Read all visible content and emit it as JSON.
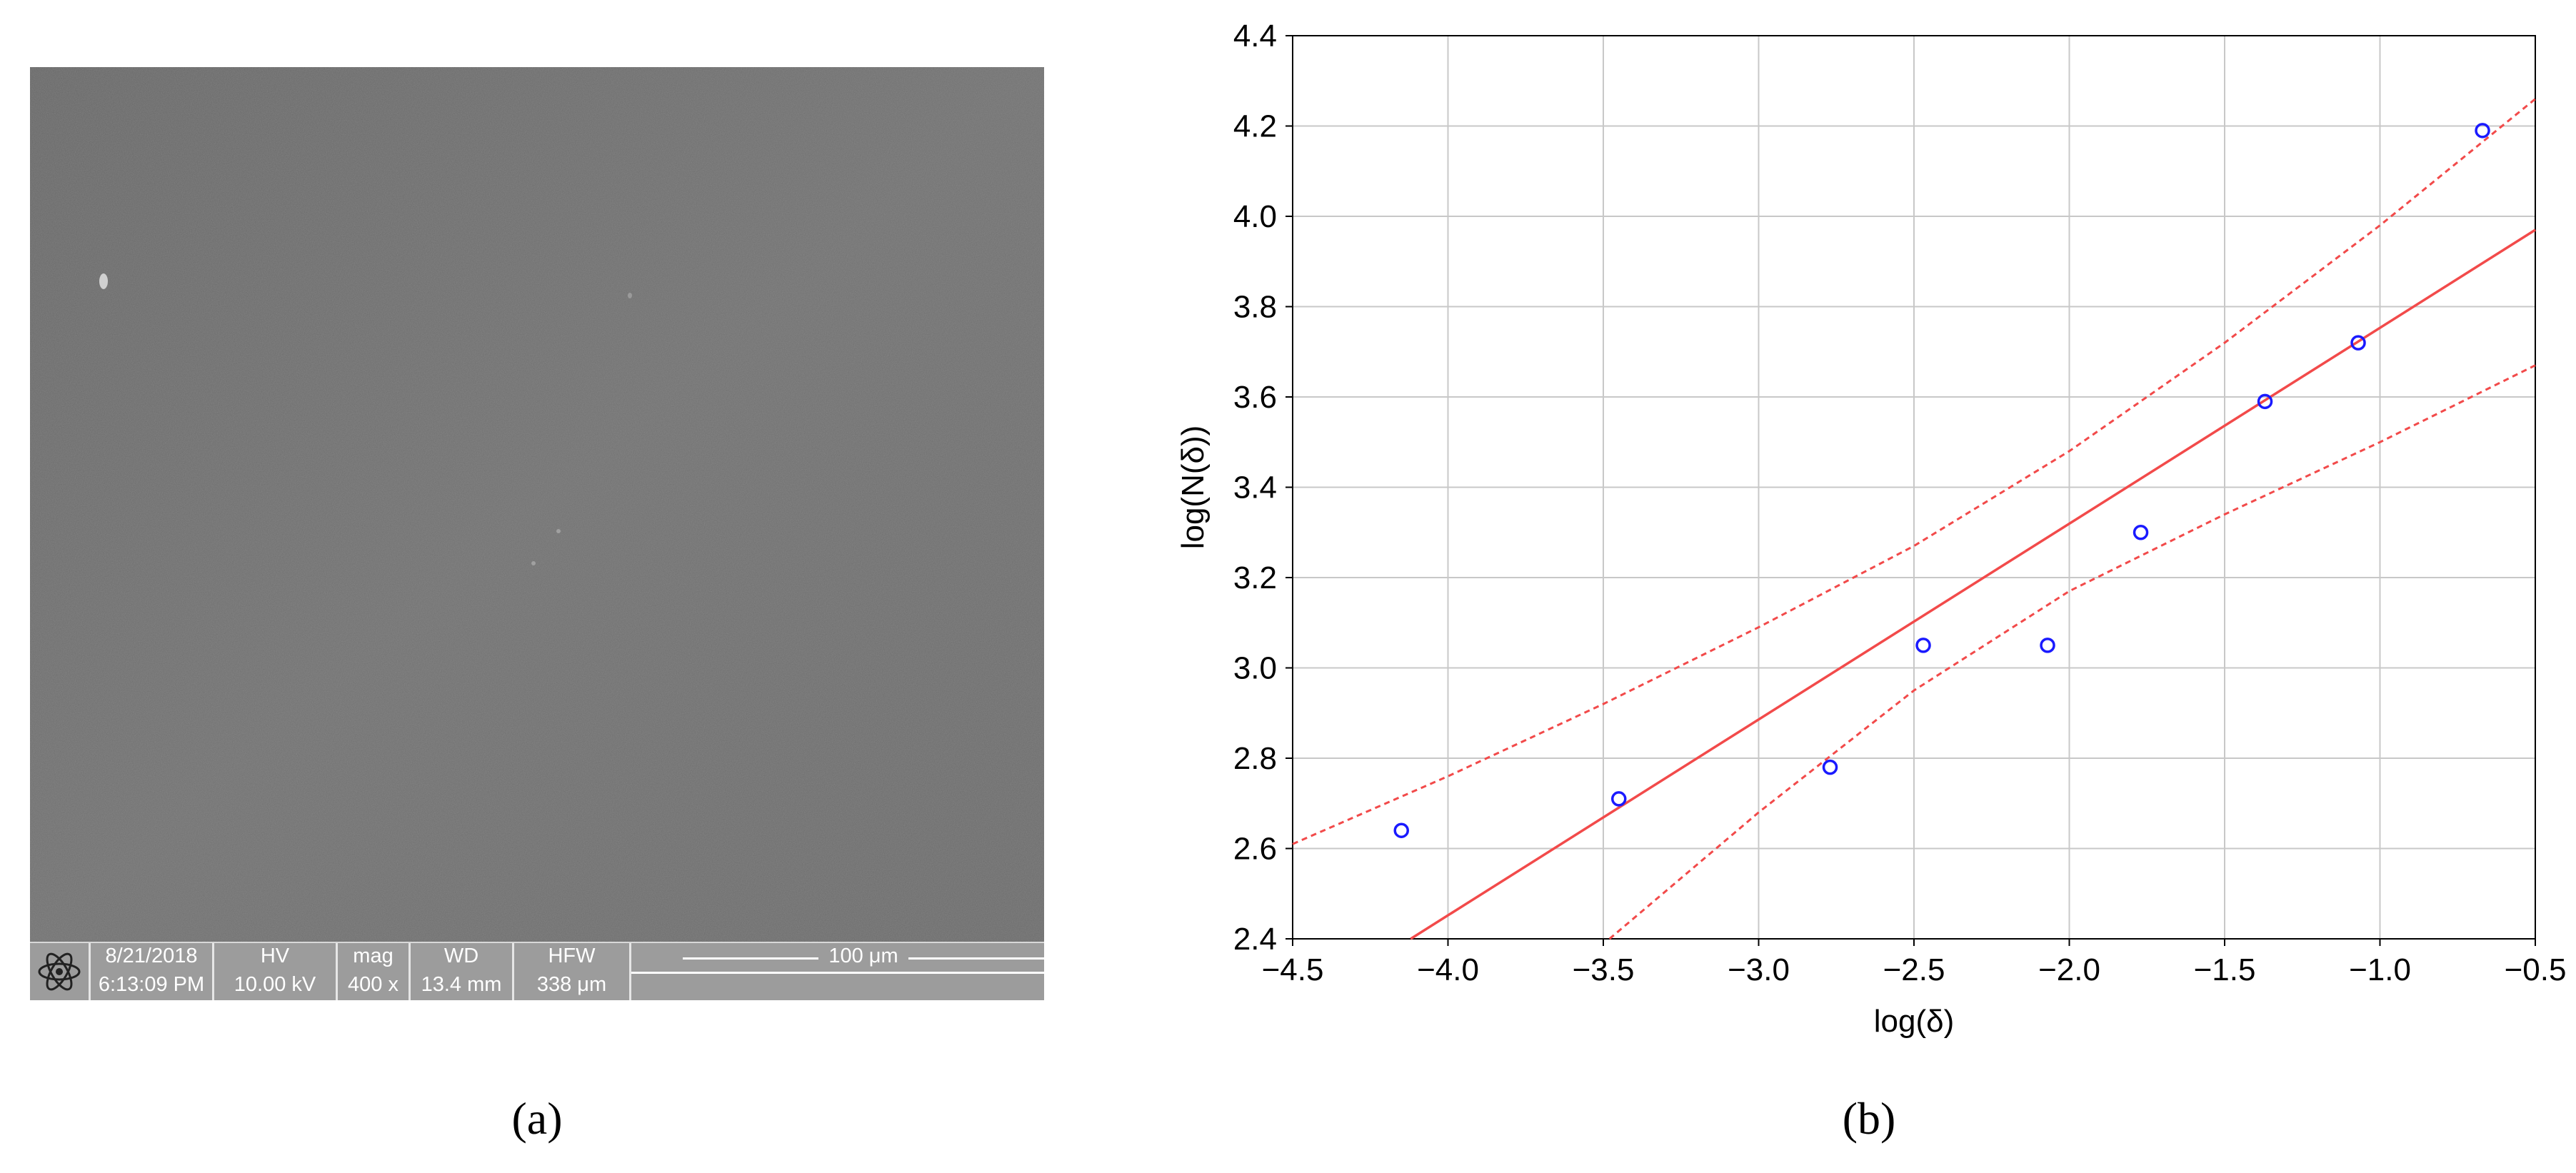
{
  "panel_a": {
    "caption": "(a)",
    "infobar": {
      "date": "8/21/2018",
      "time": "6:13:09 PM",
      "hv_label": "HV",
      "hv_value": "10.00 kV",
      "mag_label": "mag",
      "mag_value": "400 x",
      "wd_label": "WD",
      "wd_value": "13.4 mm",
      "hfw_label": "HFW",
      "hfw_value": "338 μm",
      "scale_label": "100 μm"
    },
    "logo_icon": "atom-icon",
    "colors": {
      "image_gray": "#6e6e6e",
      "infobar_gray": "#9c9c9c"
    }
  },
  "panel_b": {
    "caption": "(b)"
  },
  "chart_data": {
    "type": "scatter",
    "xlabel": "log(δ)",
    "ylabel": "log(N(δ))",
    "xlim": [
      -4.5,
      -0.5
    ],
    "ylim": [
      2.4,
      4.4
    ],
    "x_ticks": [
      "−4.5",
      "−4.0",
      "−3.5",
      "−3.0",
      "−2.5",
      "−2.0",
      "−1.5",
      "−1.0",
      "−0.5"
    ],
    "y_ticks": [
      "2.4",
      "2.6",
      "2.8",
      "3.0",
      "3.2",
      "3.4",
      "3.6",
      "3.8",
      "4.0",
      "4.2",
      "4.4"
    ],
    "grid": true,
    "points": [
      {
        "x": -4.15,
        "y": 2.64
      },
      {
        "x": -3.45,
        "y": 2.71
      },
      {
        "x": -2.77,
        "y": 2.78
      },
      {
        "x": -2.47,
        "y": 3.05
      },
      {
        "x": -2.07,
        "y": 3.05
      },
      {
        "x": -1.77,
        "y": 3.3
      },
      {
        "x": -1.37,
        "y": 3.59
      },
      {
        "x": -1.07,
        "y": 3.72
      },
      {
        "x": -0.67,
        "y": 4.19
      }
    ],
    "fit_line": [
      {
        "x": -4.12,
        "y": 2.4
      },
      {
        "x": -0.5,
        "y": 3.97
      }
    ],
    "confidence_upper": [
      {
        "x": -4.5,
        "y": 2.61
      },
      {
        "x": -4.0,
        "y": 2.76
      },
      {
        "x": -3.5,
        "y": 2.92
      },
      {
        "x": -3.0,
        "y": 3.09
      },
      {
        "x": -2.5,
        "y": 3.27
      },
      {
        "x": -2.0,
        "y": 3.48
      },
      {
        "x": -1.5,
        "y": 3.72
      },
      {
        "x": -1.0,
        "y": 3.98
      },
      {
        "x": -0.5,
        "y": 4.26
      }
    ],
    "confidence_lower": [
      {
        "x": -3.48,
        "y": 2.4
      },
      {
        "x": -3.0,
        "y": 2.68
      },
      {
        "x": -2.5,
        "y": 2.95
      },
      {
        "x": -2.0,
        "y": 3.17
      },
      {
        "x": -1.5,
        "y": 3.34
      },
      {
        "x": -1.0,
        "y": 3.5
      },
      {
        "x": -0.5,
        "y": 3.67
      }
    ],
    "colors": {
      "points": "#1a1aff",
      "fit": "#f24a4a",
      "grid": "#c8c8c8",
      "axis": "#000000"
    }
  }
}
